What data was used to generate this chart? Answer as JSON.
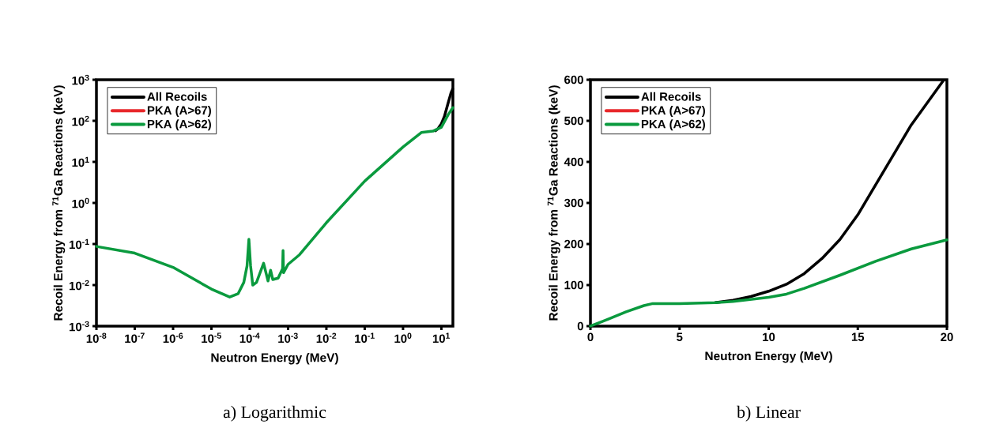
{
  "chart_data": [
    {
      "type": "line",
      "log": "xy",
      "xlabel": "Neutron Energy (MeV)",
      "ylabel": "Recoil Energy from $^{71}$Ga Reactions (keV)",
      "legend": "top left",
      "line_style": "solid",
      "annotations": [
        "a)   Logarithmic"
      ],
      "xlim": [
        1e-08,
        20
      ],
      "ylim": [
        0.001,
        1000
      ],
      "xticks": [
        {
          "value": 1e-08,
          "label": "10$^{-8}$"
        },
        {
          "value": 1e-07,
          "label": "10$^{-7}$"
        },
        {
          "value": 1e-06,
          "label": "10$^{-6}$"
        },
        {
          "value": 1e-05,
          "label": "10$^{-5}$"
        },
        {
          "value": 0.0001,
          "label": "10$^{-4}$"
        },
        {
          "value": 0.001,
          "label": "10$^{-3}$"
        },
        {
          "value": 0.01,
          "label": "10$^{-2}$"
        },
        {
          "value": 0.1,
          "label": "10$^{-1}$"
        },
        {
          "value": 1,
          "label": "10$^{0}$"
        },
        {
          "value": 10,
          "label": "10$^{1}$"
        }
      ],
      "yticks": [
        {
          "value": 0.001,
          "label": "10$^{-3}$"
        },
        {
          "value": 0.01,
          "label": "10$^{-2}$"
        },
        {
          "value": 0.1,
          "label": "10$^{-1}$"
        },
        {
          "value": 1,
          "label": "10$^{0}$"
        },
        {
          "value": 10,
          "label": "10$^{1}$"
        },
        {
          "value": 100,
          "label": "10$^{2}$"
        },
        {
          "value": 1000,
          "label": "10$^{3}$"
        }
      ],
      "series": [
        {
          "name": "All Recoils",
          "color": "#000000",
          "x": [
            7,
            8,
            10,
            12,
            15,
            18,
            19.8
          ],
          "values": [
            57,
            63,
            85,
            128,
            271,
            490,
            598
          ]
        },
        {
          "name": "PKA (A>67)",
          "color": "#e8282b"
        },
        {
          "name": "PKA (A>62)",
          "color": "#0a9a3e",
          "x": [
            1e-08,
            1e-07,
            1e-06,
            1e-05,
            3e-05,
            5e-05,
            7e-05,
            8.5e-05,
            9.5e-05,
            0.000105,
            0.00012,
            0.00015,
            0.00023,
            0.0003,
            0.00035,
            0.0004,
            0.00055,
            0.00072,
            0.00074,
            0.00076,
            0.001,
            0.002,
            0.01,
            0.1,
            1,
            3,
            6,
            10,
            15,
            20
          ],
          "values": [
            0.087,
            0.06,
            0.027,
            0.008,
            0.0051,
            0.0062,
            0.0116,
            0.029,
            0.13,
            0.03,
            0.01,
            0.0116,
            0.034,
            0.0126,
            0.023,
            0.0136,
            0.0147,
            0.025,
            0.069,
            0.02,
            0.032,
            0.055,
            0.33,
            3.4,
            23,
            52,
            56,
            70,
            140,
            210
          ]
        }
      ]
    },
    {
      "type": "line",
      "xlabel": "Neutron Energy (MeV)",
      "ylabel": "Recoil Energy from $^{71}$Ga Reactions (keV)",
      "legend": "top left",
      "line_style": "solid",
      "annotations": [
        "b)   Linear"
      ],
      "xlim": [
        0,
        20
      ],
      "ylim": [
        0,
        600
      ],
      "xticks": [
        0,
        5,
        10,
        15,
        20
      ],
      "yticks": [
        0,
        100,
        200,
        300,
        400,
        500,
        600
      ],
      "series": [
        {
          "name": "All Recoils",
          "color": "#000000",
          "x": [
            7,
            8,
            9,
            10,
            11,
            12,
            13,
            14,
            15,
            16,
            17,
            18,
            19,
            19.8
          ],
          "values": [
            57,
            63,
            72,
            85,
            102,
            128,
            165,
            211,
            271,
            344,
            417,
            490,
            550,
            598
          ]
        },
        {
          "name": "PKA (A>67)",
          "color": "#e8282b"
        },
        {
          "name": "PKA (A>62)",
          "color": "#0a9a3e",
          "x": [
            0,
            1,
            2,
            3,
            3.5,
            5,
            7,
            8,
            10,
            11,
            12,
            14,
            16,
            18,
            20
          ],
          "values": [
            0,
            17,
            35,
            50,
            55,
            55,
            57,
            60,
            70,
            78,
            92,
            124,
            158,
            188,
            210
          ]
        }
      ]
    }
  ]
}
